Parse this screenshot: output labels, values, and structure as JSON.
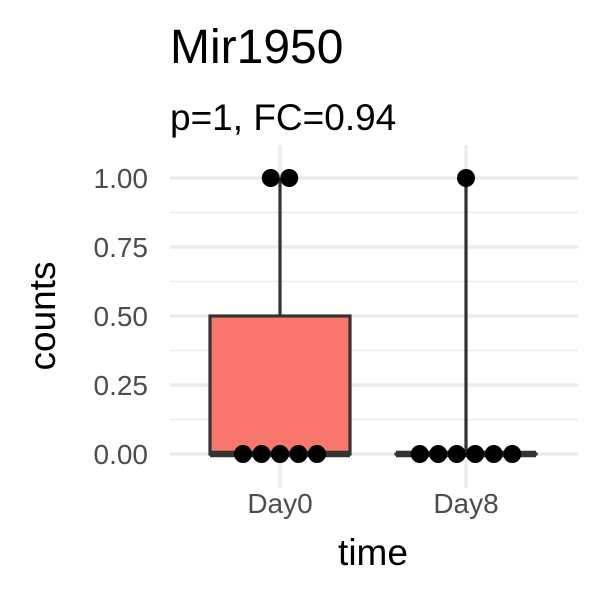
{
  "chart_data": {
    "type": "box",
    "title": "Mir1950",
    "subtitle": "p=1, FC=0.94",
    "xlabel": "time",
    "ylabel": "counts",
    "ylim": [
      -0.08,
      1.08
    ],
    "yticks": [
      0.0,
      0.25,
      0.5,
      0.75,
      1.0
    ],
    "ytick_labels": [
      "0.00",
      "0.25",
      "0.50",
      "0.75",
      "1.00"
    ],
    "categories": [
      "Day0",
      "Day8"
    ],
    "grid": true,
    "boxes": [
      {
        "category": "Day0",
        "min": 0,
        "q1": 0,
        "median": 0,
        "q3": 0.5,
        "max": 1,
        "fill": "#f8766d",
        "points": [
          0,
          0,
          0,
          0,
          0,
          1,
          1
        ]
      },
      {
        "category": "Day8",
        "min": 0,
        "q1": 0,
        "median": 0,
        "q3": 0,
        "max": 1,
        "fill": "#00bfc4",
        "points": [
          0,
          0,
          0,
          0,
          0,
          0,
          1
        ]
      }
    ],
    "colors": {
      "box_stroke": "#333333",
      "point": "#000000",
      "grid": "#ebebeb",
      "tick_text": "#4d4d4d"
    }
  }
}
